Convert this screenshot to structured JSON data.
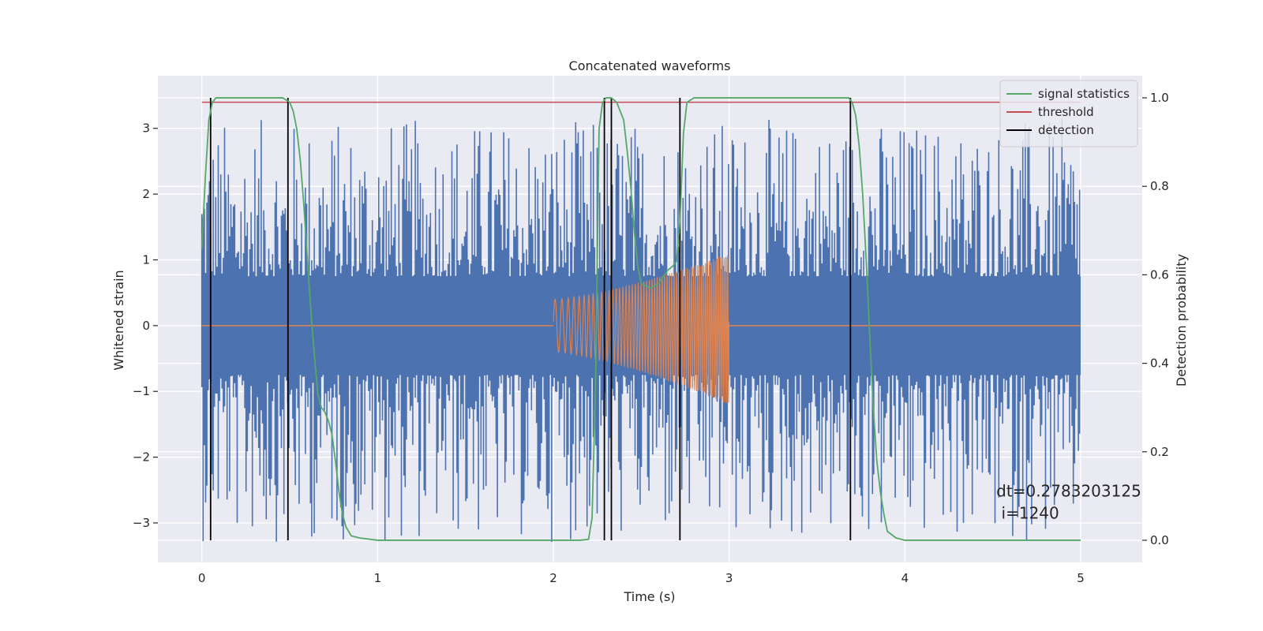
{
  "chart_data": {
    "type": "line",
    "title": "Concatenated waveforms",
    "xlabel": "Time (s)",
    "ylabel": "Whitened strain",
    "y2label": "Detection probability",
    "xlim": [
      -0.25,
      5.35
    ],
    "ylim": [
      -3.6,
      3.8
    ],
    "y2lim": [
      -0.05,
      1.05
    ],
    "x_ticks": [
      0,
      1,
      2,
      3,
      4,
      5
    ],
    "y_ticks": [
      -3,
      -2,
      -1,
      0,
      1,
      2,
      3
    ],
    "y2_ticks": [
      0.0,
      0.2,
      0.4,
      0.6,
      0.8,
      1.0
    ],
    "x_tick_labels": [
      "0",
      "1",
      "2",
      "3",
      "4",
      "5"
    ],
    "y_tick_labels": [
      "−3",
      "−2",
      "−1",
      "0",
      "1",
      "2",
      "3"
    ],
    "y2_tick_labels": [
      "0.0",
      "0.2",
      "0.4",
      "0.6",
      "0.8",
      "1.0"
    ],
    "grid": true,
    "legend_position": "top-right",
    "colors": {
      "background": "#eaeaf2",
      "grid": "#ffffff",
      "strain": "#4c72b0",
      "injection": "#dd8452",
      "signal": "#55a868",
      "threshold": "#c44e52",
      "detection": "#000000"
    },
    "legend": [
      {
        "name": "signal statistics",
        "color": "#55a868"
      },
      {
        "name": "threshold",
        "color": "#c44e52"
      },
      {
        "name": "detection",
        "color": "#000000"
      }
    ],
    "series": [
      {
        "name": "signal statistics",
        "axis": "right",
        "x": [
          0.0,
          0.02,
          0.04,
          0.06,
          0.08,
          0.1,
          0.2,
          0.3,
          0.4,
          0.46,
          0.5,
          0.52,
          0.54,
          0.56,
          0.58,
          0.6,
          0.62,
          0.64,
          0.66,
          0.68,
          0.7,
          0.72,
          0.74,
          0.76,
          0.78,
          0.8,
          0.82,
          0.85,
          0.9,
          1.0,
          1.5,
          2.0,
          2.15,
          2.2,
          2.22,
          2.24,
          2.26,
          2.28,
          2.3,
          2.33,
          2.36,
          2.4,
          2.42,
          2.44,
          2.46,
          2.48,
          2.5,
          2.55,
          2.6,
          2.65,
          2.68,
          2.7,
          2.72,
          2.74,
          2.76,
          2.8,
          3.0,
          3.3,
          3.6,
          3.68,
          3.7,
          3.72,
          3.74,
          3.76,
          3.78,
          3.8,
          3.82,
          3.84,
          3.86,
          3.88,
          3.9,
          3.95,
          4.0,
          4.5,
          5.0
        ],
        "values": [
          0.66,
          0.82,
          0.95,
          0.99,
          1.0,
          1.0,
          1.0,
          1.0,
          1.0,
          1.0,
          0.99,
          0.97,
          0.93,
          0.86,
          0.76,
          0.64,
          0.52,
          0.42,
          0.33,
          0.3,
          0.29,
          0.27,
          0.24,
          0.18,
          0.11,
          0.06,
          0.03,
          0.01,
          0.005,
          0.0,
          0.0,
          0.0,
          0.0,
          0.002,
          0.05,
          0.35,
          0.93,
          0.99,
          1.0,
          1.0,
          0.99,
          0.95,
          0.88,
          0.8,
          0.7,
          0.62,
          0.58,
          0.57,
          0.58,
          0.61,
          0.62,
          0.63,
          0.72,
          0.92,
          0.99,
          1.0,
          1.0,
          1.0,
          1.0,
          1.0,
          0.99,
          0.96,
          0.89,
          0.78,
          0.63,
          0.46,
          0.3,
          0.18,
          0.11,
          0.06,
          0.02,
          0.005,
          0.0,
          0.0,
          0.0
        ]
      },
      {
        "name": "threshold",
        "axis": "right",
        "x": [
          0.0,
          5.0
        ],
        "values": [
          0.99,
          0.99
        ]
      },
      {
        "name": "detection",
        "axis": "right",
        "type": "vlines",
        "x": [
          0.05,
          0.49,
          2.29,
          2.33,
          2.72,
          3.69
        ],
        "ymin": 0.0,
        "ymax": 1.0
      },
      {
        "name": "whitened strain",
        "axis": "left",
        "x_range": [
          0.0,
          5.0
        ],
        "band_inner": 0.75,
        "band_outer_max": 3.15,
        "band_outer_min": -3.3
      },
      {
        "name": "injected waveform",
        "axis": "left",
        "x_range": [
          2.0,
          3.0
        ],
        "start_amplitude": 0.4,
        "end_amplitude_top": 1.1,
        "end_amplitude_bottom": -1.2
      }
    ],
    "annotation": {
      "line1": "dt=0.2783203125",
      "line2": " i=1240",
      "x": 4.52,
      "y": -2.6
    }
  }
}
